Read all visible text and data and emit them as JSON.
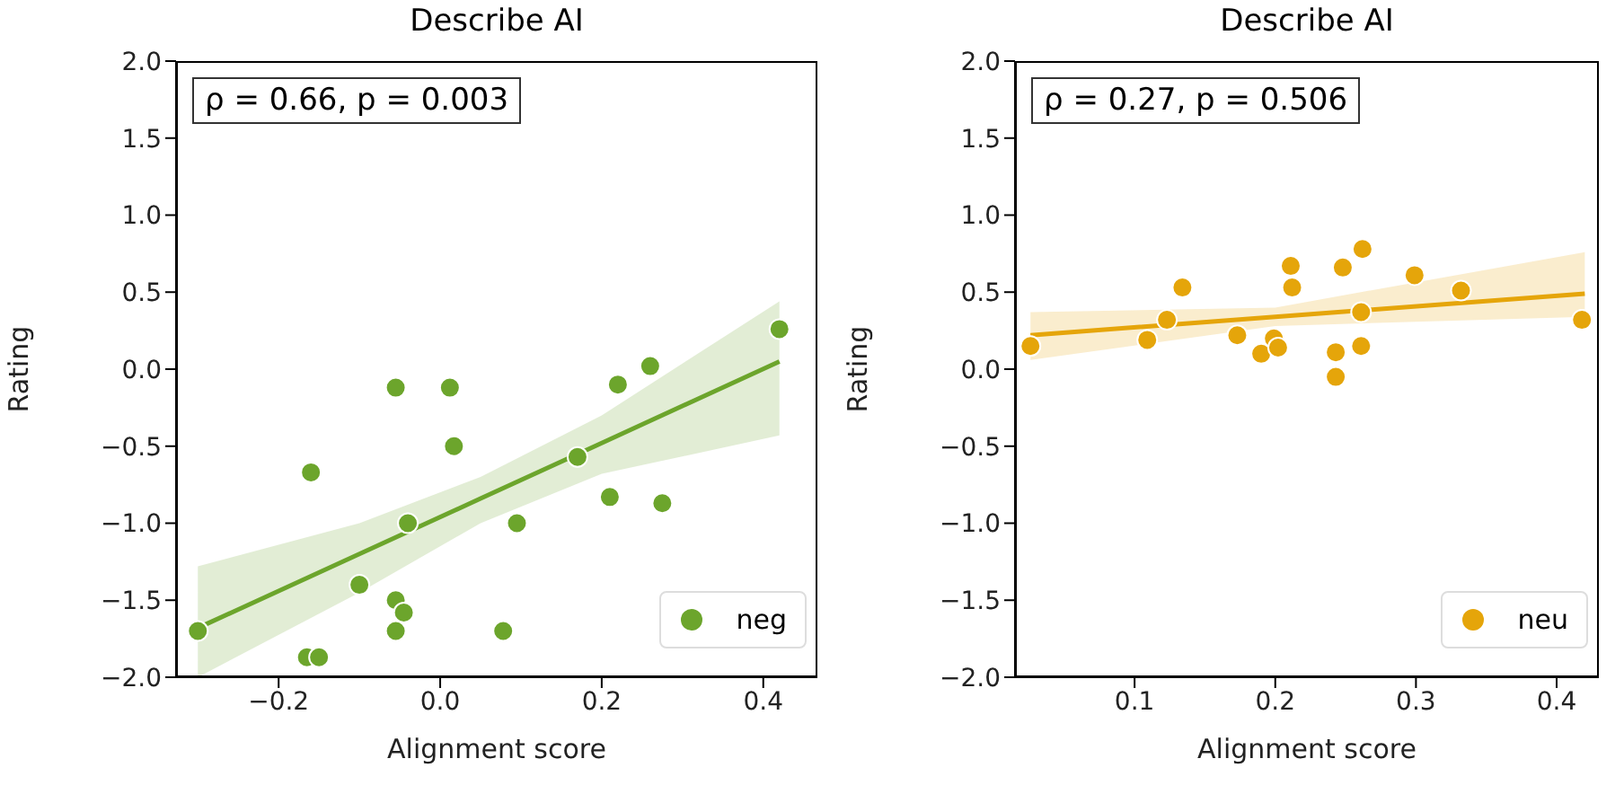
{
  "chart_data": [
    {
      "type": "scatter",
      "title": "Describe AI",
      "xlabel": "Alignment score",
      "ylabel": "Rating",
      "annotations": [
        "ρ = 0.66, p = 0.003"
      ],
      "xlim": [
        -0.327,
        0.467
      ],
      "ylim": [
        -2.0,
        2.0
      ],
      "xticks": [
        {
          "value": -0.2,
          "label": "−0.2"
        },
        {
          "value": 0,
          "label": "0.0"
        },
        {
          "value": 0.2,
          "label": "0.2"
        },
        {
          "value": 0.4,
          "label": "0.4"
        }
      ],
      "yticks": [
        {
          "value": -2,
          "label": "−2.0"
        },
        {
          "value": -1.5,
          "label": "−1.5"
        },
        {
          "value": -1,
          "label": "−1.0"
        },
        {
          "value": -0.5,
          "label": "−0.5"
        },
        {
          "value": 0,
          "label": "0.0"
        },
        {
          "value": 0.5,
          "label": "0.5"
        },
        {
          "value": 1,
          "label": "1.0"
        },
        {
          "value": 1.5,
          "label": "1.5"
        },
        {
          "value": 2,
          "label": "2.0"
        }
      ],
      "legend": "bottom right",
      "marker": "circle",
      "line_style": "solid",
      "series": [
        {
          "name": "neg",
          "color": "#6ca52c",
          "x": [
            -0.3,
            -0.165,
            -0.15,
            -0.16,
            -0.1,
            -0.055,
            -0.055,
            -0.045,
            -0.055,
            -0.04,
            0.012,
            0.017,
            0.095,
            0.078,
            0.17,
            0.21,
            0.22,
            0.26,
            0.275,
            0.42
          ],
          "values": [
            -1.7,
            -1.87,
            -1.87,
            -0.67,
            -1.4,
            -0.12,
            -1.5,
            -1.58,
            -1.7,
            -1.0,
            -0.12,
            -0.5,
            -1.0,
            -1.7,
            -0.57,
            -0.83,
            -0.1,
            0.02,
            -0.87,
            0.26
          ]
        },
        {
          "type": "line",
          "marker": "none",
          "color": "#6ca52c",
          "x": [
            -0.3,
            -0.1,
            0.05,
            0.2,
            0.42
          ],
          "values": [
            -1.68,
            -1.2,
            -0.84,
            -0.48,
            0.05
          ],
          "lower": [
            -2.0,
            -1.45,
            -1.0,
            -0.68,
            -0.43
          ],
          "upper": [
            -1.28,
            -1.0,
            -0.7,
            -0.3,
            0.44
          ]
        }
      ]
    },
    {
      "type": "scatter",
      "title": "Describe AI",
      "xlabel": "Alignment score",
      "ylabel": "Rating",
      "annotations": [
        "ρ = 0.27, p = 0.506"
      ],
      "xlim": [
        0.015,
        0.43
      ],
      "ylim": [
        -2.0,
        2.0
      ],
      "xticks": [
        0.1,
        0.2,
        0.3,
        0.4
      ],
      "yticks": [
        {
          "value": -2,
          "label": "−2.0"
        },
        {
          "value": -1.5,
          "label": "−1.5"
        },
        {
          "value": -1,
          "label": "−1.0"
        },
        {
          "value": -0.5,
          "label": "−0.5"
        },
        {
          "value": 0,
          "label": "0.0"
        },
        {
          "value": 0.5,
          "label": "0.5"
        },
        {
          "value": 1,
          "label": "1.0"
        },
        {
          "value": 1.5,
          "label": "1.5"
        },
        {
          "value": 2,
          "label": "2.0"
        }
      ],
      "legend": "bottom right",
      "marker": "circle",
      "line_style": "solid",
      "series": [
        {
          "name": "neu",
          "color": "#e5a50a",
          "x": [
            0.026,
            0.109,
            0.123,
            0.134,
            0.173,
            0.19,
            0.199,
            0.202,
            0.211,
            0.212,
            0.243,
            0.243,
            0.248,
            0.262,
            0.261,
            0.261,
            0.299,
            0.332,
            0.418
          ],
          "values": [
            0.15,
            0.19,
            0.32,
            0.53,
            0.22,
            0.1,
            0.2,
            0.14,
            0.67,
            0.53,
            0.11,
            -0.05,
            0.66,
            0.78,
            0.37,
            0.15,
            0.61,
            0.51,
            0.32
          ]
        },
        {
          "type": "line",
          "marker": "none",
          "color": "#e5a50a",
          "x": [
            0.026,
            0.2,
            0.42
          ],
          "values": [
            0.22,
            0.34,
            0.49
          ],
          "lower": [
            0.06,
            0.28,
            0.34
          ],
          "upper": [
            0.37,
            0.4,
            0.76
          ]
        }
      ]
    }
  ]
}
